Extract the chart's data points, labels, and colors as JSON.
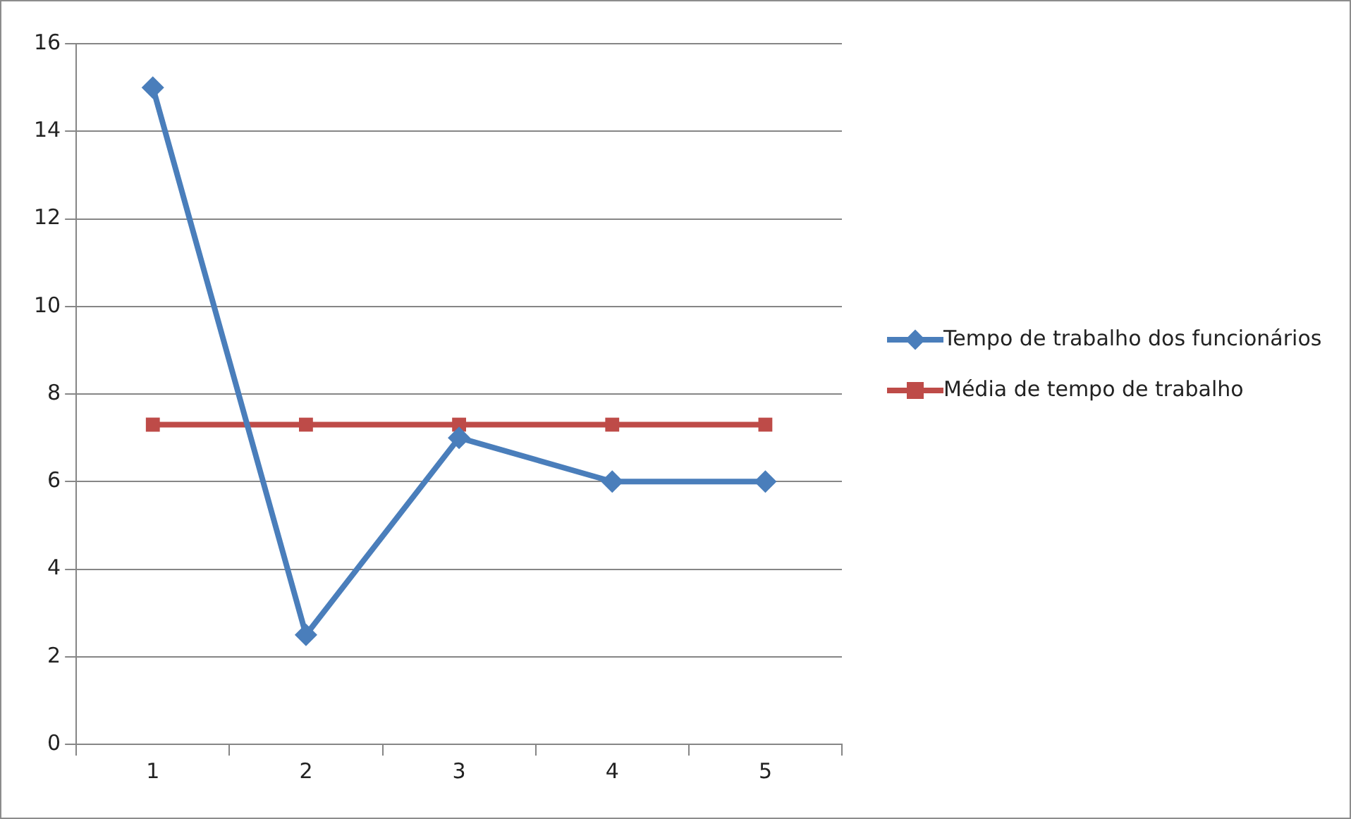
{
  "chart_data": {
    "type": "line",
    "categories": [
      "1",
      "2",
      "3",
      "4",
      "5"
    ],
    "series": [
      {
        "name": "Tempo de trabalho dos funcionários",
        "color": "#4a7ebb",
        "values": [
          15,
          2.5,
          7,
          6,
          6
        ],
        "marker": "diamond"
      },
      {
        "name": "Média de tempo de trabalho",
        "color": "#be4b48",
        "values": [
          7.3,
          7.3,
          7.3,
          7.3,
          7.3
        ],
        "marker": "square"
      }
    ],
    "ylim": [
      0,
      16
    ],
    "yticks": [
      0,
      2,
      4,
      6,
      8,
      10,
      12,
      14,
      16
    ],
    "grid": "y",
    "legend": "right",
    "line_style": "solid"
  }
}
